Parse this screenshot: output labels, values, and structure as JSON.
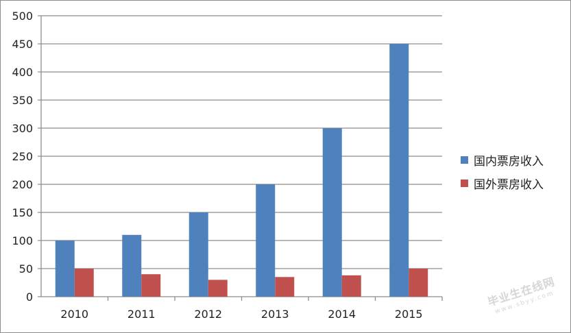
{
  "chart_data": {
    "type": "bar",
    "categories": [
      "2010",
      "2011",
      "2012",
      "2013",
      "2014",
      "2015"
    ],
    "series": [
      {
        "name": "国内票房收入",
        "color": "#4f81bd",
        "values": [
          100,
          110,
          150,
          200,
          300,
          450
        ]
      },
      {
        "name": "国外票房收入",
        "color": "#c0504d",
        "values": [
          50,
          40,
          30,
          35,
          38,
          50
        ]
      }
    ],
    "yticks": [
      "0",
      "50",
      "100",
      "150",
      "200",
      "250",
      "300",
      "350",
      "400",
      "450",
      "500"
    ],
    "ylim": [
      0,
      500
    ],
    "grid": true,
    "legend_position": "right"
  },
  "watermark": {
    "text": "毕业生在线网",
    "url": "www.sbyy.com"
  }
}
